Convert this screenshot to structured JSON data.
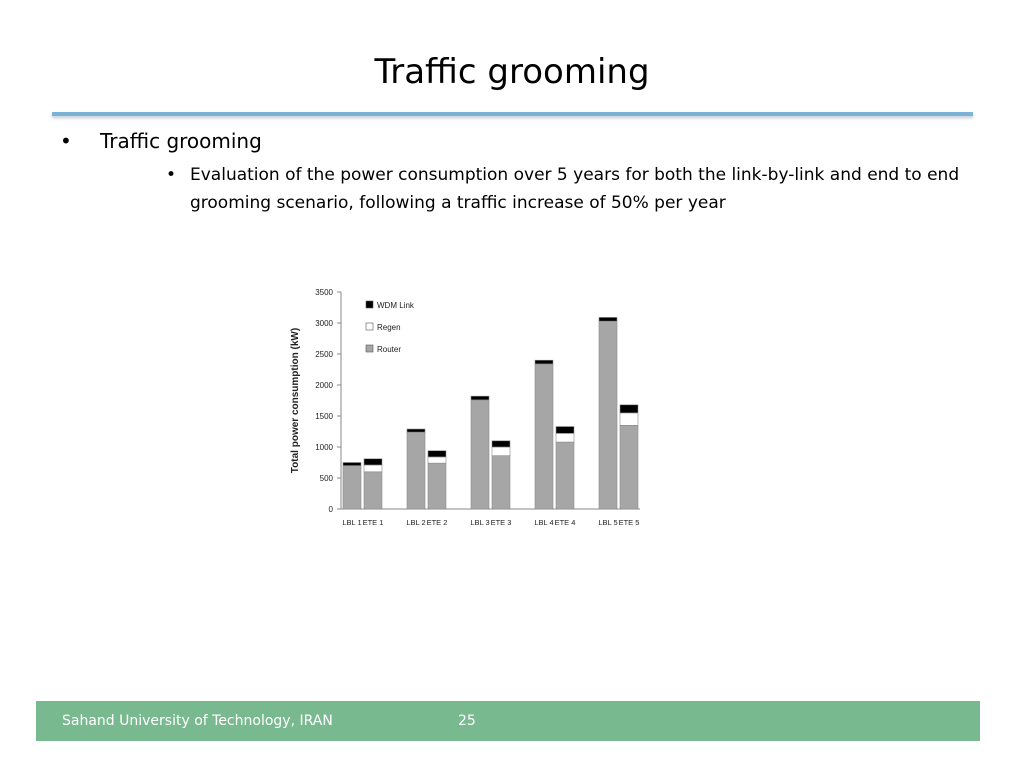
{
  "slide": {
    "title": "Traffic grooming",
    "bullet_level1": "Traffic grooming",
    "bullet_level2": "Evaluation of the power consumption over 5 years for both the link-by-link and end to end grooming scenario, following a traffic increase of 50% per year",
    "bullet_level1_symbol": "•",
    "bullet_level2_symbol": "•"
  },
  "footer": {
    "organization": "Sahand University of Technology, IRAN",
    "page_number": "25"
  },
  "colors": {
    "title_rule": "#7ab3d6",
    "footer_bg": "#79b98f",
    "router": "#a6a6a6",
    "regen": "#ffffff",
    "wdm_link": "#000000"
  },
  "chart_data": {
    "type": "bar",
    "stacked": true,
    "title": "",
    "xlabel": "",
    "ylabel": "Total power consumption (kW)",
    "ylim": [
      0,
      3500
    ],
    "yticks": [
      0,
      500,
      1000,
      1500,
      2000,
      2500,
      3000,
      3500
    ],
    "categories": [
      "LBL 1",
      "ETE 1",
      "LBL 2",
      "ETE 2",
      "LBL 3",
      "ETE 3",
      "LBL 4",
      "ETE 4",
      "LBL 5",
      "ETE 5"
    ],
    "series": [
      {
        "name": "Router",
        "color": "#a6a6a6",
        "values": [
          700,
          600,
          1240,
          740,
          1760,
          860,
          2340,
          1080,
          3030,
          1350
        ]
      },
      {
        "name": "Regen",
        "color": "#ffffff",
        "values": [
          0,
          110,
          0,
          100,
          0,
          140,
          0,
          140,
          0,
          200
        ]
      },
      {
        "name": "WDM Link",
        "color": "#000000",
        "values": [
          50,
          100,
          50,
          100,
          60,
          100,
          60,
          110,
          60,
          130
        ]
      }
    ],
    "legend_order": [
      "WDM Link",
      "Regen",
      "Router"
    ],
    "legend_position": "top-left",
    "grid": false
  }
}
